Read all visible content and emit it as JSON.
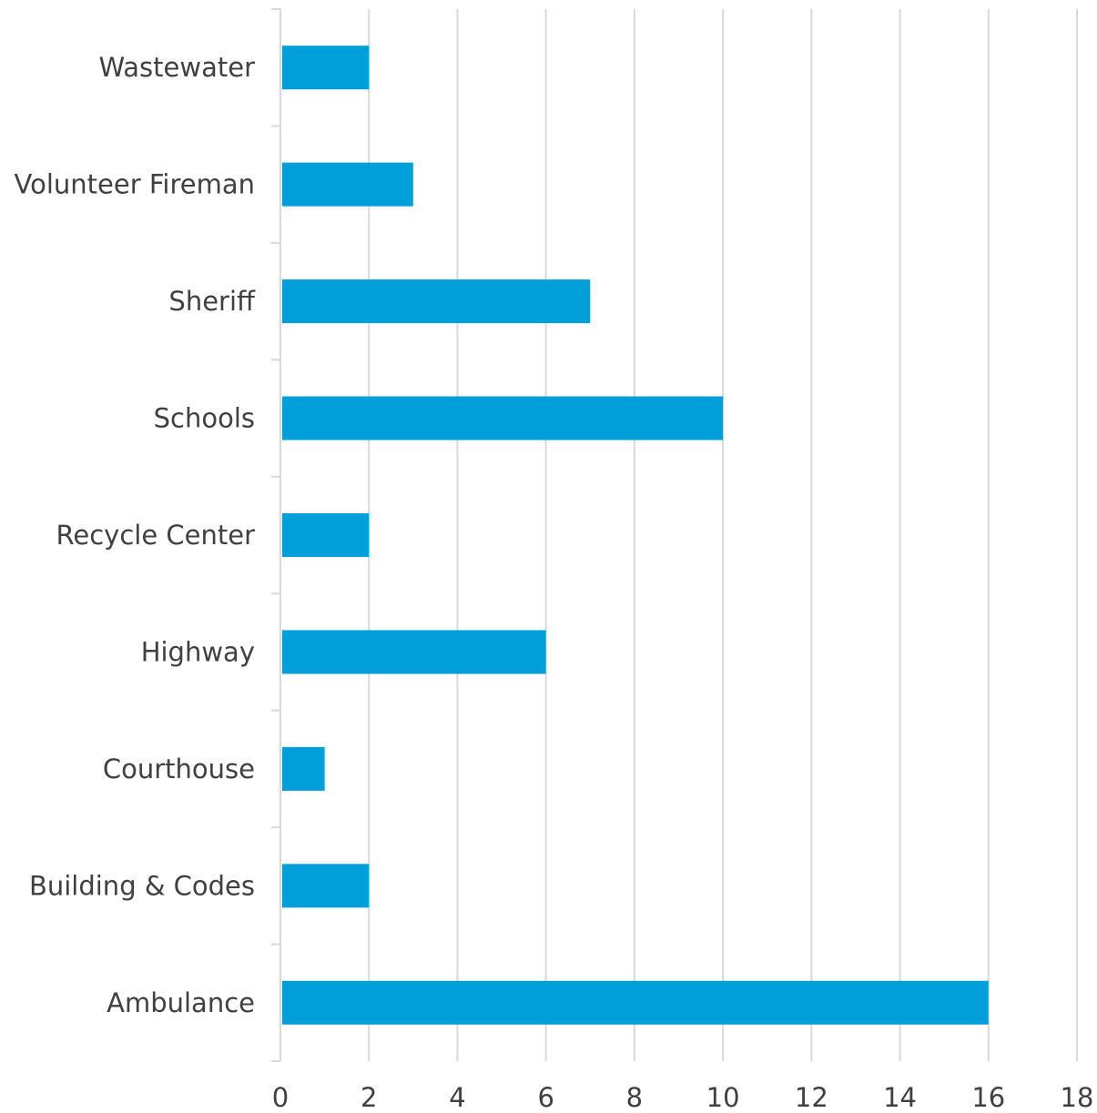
{
  "chart_data": {
    "type": "bar",
    "orientation": "horizontal",
    "categories": [
      "Wastewater",
      "Volunteer Fireman",
      "Sheriff",
      "Schools",
      "Recycle Center",
      "Highway",
      "Courthouse",
      "Building & Codes",
      "Ambulance"
    ],
    "values": [
      2,
      3,
      7,
      10,
      2,
      6,
      1,
      2,
      16
    ],
    "title": "",
    "xlabel": "",
    "ylabel": "",
    "xlim": [
      0,
      18
    ],
    "xticks": [
      0,
      2,
      4,
      6,
      8,
      10,
      12,
      14,
      16,
      18
    ],
    "grid": "vertical",
    "legend": "none",
    "bar_color": "#009FDA",
    "grid_color": "#D9D9D9"
  }
}
